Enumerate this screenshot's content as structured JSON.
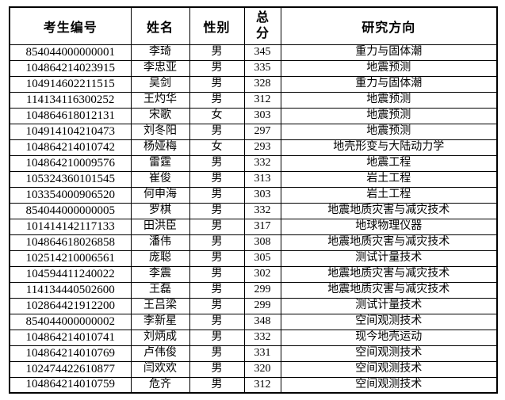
{
  "table": {
    "headers": [
      "考生编号",
      "姓名",
      "性别",
      "总分",
      "研究方向"
    ],
    "rows": [
      [
        "854044000000001",
        "李琦",
        "男",
        "345",
        "重力与固体潮"
      ],
      [
        "104864214023915",
        "李忠亚",
        "男",
        "335",
        "地震预测"
      ],
      [
        "104914602211515",
        "吴剑",
        "男",
        "328",
        "重力与固体潮"
      ],
      [
        "114134116300252",
        "王灼华",
        "男",
        "312",
        "地震预测"
      ],
      [
        "104864618012131",
        "宋歌",
        "女",
        "303",
        "地震预测"
      ],
      [
        "104914104210473",
        "刘冬阳",
        "男",
        "297",
        "地震预测"
      ],
      [
        "104864214010742",
        "杨娅梅",
        "女",
        "293",
        "地壳形变与大陆动力学"
      ],
      [
        "104864210009576",
        "雷霆",
        "男",
        "332",
        "地震工程"
      ],
      [
        "105324360101545",
        "崔俊",
        "男",
        "313",
        "岩土工程"
      ],
      [
        "103354000906520",
        "何申海",
        "男",
        "303",
        "岩土工程"
      ],
      [
        "854044000000005",
        "罗棋",
        "男",
        "332",
        "地震地质灾害与减灾技术"
      ],
      [
        "101414142117133",
        "田洪臣",
        "男",
        "317",
        "地球物理仪器"
      ],
      [
        "104864618026858",
        "潘伟",
        "男",
        "308",
        "地震地质灾害与减灾技术"
      ],
      [
        "102514210006561",
        "庞聪",
        "男",
        "305",
        "测试计量技术"
      ],
      [
        "104594411240022",
        "李震",
        "男",
        "302",
        "地震地质灾害与减灾技术"
      ],
      [
        "114134440502600",
        "王磊",
        "男",
        "299",
        "地震地质灾害与减灾技术"
      ],
      [
        "102864421912200",
        "王吕梁",
        "男",
        "299",
        "测试计量技术"
      ],
      [
        "854044000000002",
        "李新星",
        "男",
        "348",
        "空间观测技术"
      ],
      [
        "104864214010741",
        "刘炳成",
        "男",
        "332",
        "现今地壳运动"
      ],
      [
        "104864214010769",
        "卢伟俊",
        "男",
        "331",
        "空间观测技术"
      ],
      [
        "102474422610877",
        "闫欢欢",
        "男",
        "320",
        "空间观测技术"
      ],
      [
        "104864214010759",
        "危齐",
        "男",
        "312",
        "空间观测技术"
      ]
    ]
  }
}
